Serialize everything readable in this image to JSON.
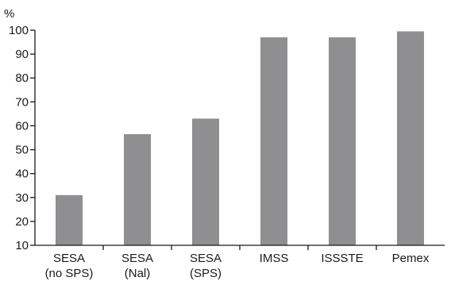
{
  "chart_data": {
    "type": "bar",
    "unit_label": "%",
    "categories": [
      [
        "SESA",
        "(no SPS)"
      ],
      [
        "SESA",
        "(Nal)"
      ],
      [
        "SESA",
        "(SPS)"
      ],
      [
        "IMSS"
      ],
      [
        "ISSSTE"
      ],
      [
        "Pemex"
      ]
    ],
    "values": [
      31,
      56.5,
      63,
      97,
      97,
      99.5
    ],
    "ylim": [
      10,
      100
    ],
    "yticks": [
      10,
      20,
      30,
      40,
      50,
      60,
      70,
      80,
      90,
      100
    ],
    "grid": false,
    "legend": "none",
    "colors": {
      "bar": "#8f8f91",
      "axis": "#1a1a1a"
    }
  }
}
